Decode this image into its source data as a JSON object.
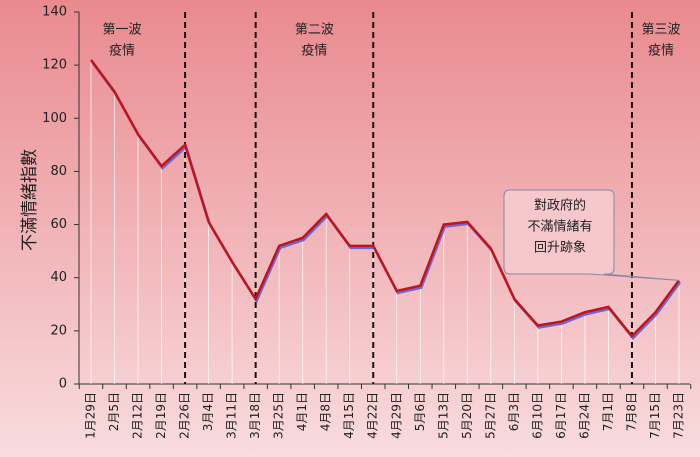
{
  "chart_data": {
    "type": "line",
    "y_label": "不滿情緒指數",
    "categories": [
      "1月29日",
      "2月5日",
      "2月12日",
      "2月19日",
      "2月26日",
      "3月4日",
      "3月11日",
      "3月18日",
      "3月25日",
      "4月1日",
      "4月8日",
      "4月15日",
      "4月22日",
      "4月29日",
      "5月6日",
      "5月13日",
      "5月20日",
      "5月27日",
      "6月3日",
      "6月10日",
      "6月17日",
      "6月24日",
      "7月1日",
      "7月8日",
      "7月15日",
      "7月23日"
    ],
    "values": [
      122,
      110,
      94,
      82,
      90,
      61,
      46,
      32,
      52,
      55,
      64,
      52,
      52,
      35,
      37,
      60,
      61,
      51,
      32,
      22,
      23.5,
      27,
      29,
      18,
      27,
      39
    ],
    "color": "#c0141c",
    "ylim": [
      0,
      140
    ],
    "yticks": [
      0,
      20,
      40,
      60,
      80,
      100,
      120,
      140
    ],
    "dividers": [
      4,
      7,
      12,
      23
    ],
    "wave_labels": [
      [
        "第一波",
        "疫情"
      ],
      [
        "第二波",
        "疫情"
      ],
      [
        "第三波",
        "疫情"
      ]
    ],
    "callout": [
      "對政府的",
      "不滿情緒有",
      "回升跡象"
    ]
  }
}
